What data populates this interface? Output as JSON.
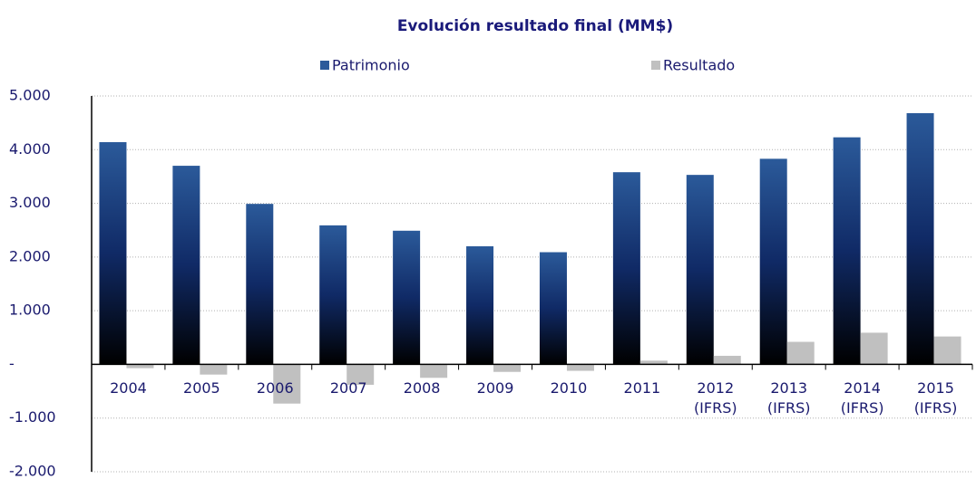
{
  "chart_data": {
    "type": "bar",
    "title": "Evolución resultado final (MM$)",
    "categories": [
      "2004",
      "2005",
      "2006",
      "2007",
      "2008",
      "2009",
      "2010",
      "2011",
      "2012\n(IFRS)",
      "2013\n(IFRS)",
      "2014\n(IFRS)",
      "2015\n(IFRS)"
    ],
    "series": [
      {
        "name": "Patrimonio",
        "color": "#2b5a9a",
        "values": [
          4140,
          3700,
          2990,
          2590,
          2490,
          2200,
          2090,
          3580,
          3530,
          3830,
          4230,
          4680
        ]
      },
      {
        "name": "Resultado",
        "color": "#c0c0c0",
        "values": [
          -70,
          -190,
          -730,
          -380,
          -250,
          -140,
          -120,
          70,
          160,
          420,
          590,
          520
        ]
      }
    ],
    "ylim": [
      -2000,
      5000
    ],
    "yticks": [
      {
        "value": -2000,
        "label": "-2.000"
      },
      {
        "value": -1000,
        "label": "-1.000"
      },
      {
        "value": 0,
        "label": "-"
      },
      {
        "value": 1000,
        "label": "1.000"
      },
      {
        "value": 2000,
        "label": "2.000"
      },
      {
        "value": 3000,
        "label": "3.000"
      },
      {
        "value": 4000,
        "label": "4.000"
      },
      {
        "value": 5000,
        "label": "5.000"
      }
    ],
    "grid": true
  }
}
